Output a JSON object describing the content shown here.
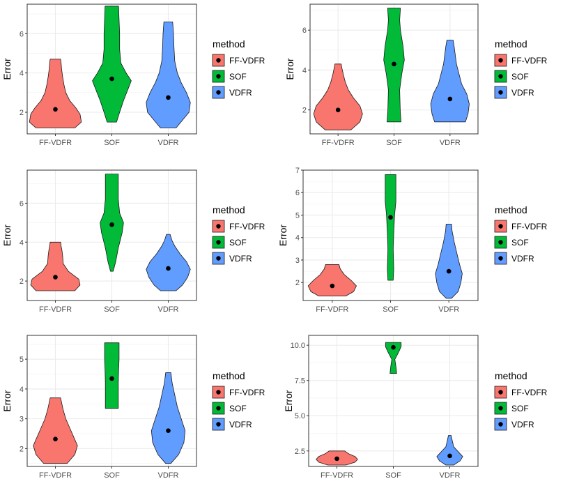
{
  "colors": {
    "FF-VDFR": "#f8766d",
    "SOF": "#00ba38",
    "VDFR": "#619cff"
  },
  "chart_data": [
    {
      "type": "violin",
      "ylabel": "Error",
      "categories": [
        "FF-VDFR",
        "SOF",
        "VDFR"
      ],
      "ylim": [
        0.9,
        7.5
      ],
      "yticks": [
        2,
        4,
        6
      ],
      "legend": {
        "title": "method",
        "entries": [
          "FF-VDFR",
          "SOF",
          "VDFR"
        ],
        "position": "right"
      },
      "series": [
        {
          "name": "FF-VDFR",
          "min": 1.2,
          "max": 4.7,
          "mean": 2.15,
          "profile": [
            [
              1.2,
              0.75
            ],
            [
              1.5,
              1.0
            ],
            [
              1.9,
              0.95
            ],
            [
              2.2,
              0.8
            ],
            [
              2.6,
              0.55
            ],
            [
              3.0,
              0.4
            ],
            [
              3.4,
              0.33
            ],
            [
              3.8,
              0.28
            ],
            [
              4.2,
              0.24
            ],
            [
              4.5,
              0.22
            ],
            [
              4.7,
              0.2
            ]
          ]
        },
        {
          "name": "SOF",
          "min": 1.5,
          "max": 7.4,
          "mean": 3.7,
          "profile": [
            [
              1.5,
              0.18
            ],
            [
              2.0,
              0.3
            ],
            [
              2.6,
              0.45
            ],
            [
              3.1,
              0.6
            ],
            [
              3.6,
              0.75
            ],
            [
              4.0,
              0.55
            ],
            [
              4.5,
              0.35
            ],
            [
              5.2,
              0.3
            ],
            [
              6.0,
              0.3
            ],
            [
              6.7,
              0.28
            ],
            [
              7.4,
              0.26
            ]
          ]
        },
        {
          "name": "VDFR",
          "min": 1.2,
          "max": 6.6,
          "mean": 2.75,
          "profile": [
            [
              1.2,
              0.3
            ],
            [
              1.6,
              0.55
            ],
            [
              2.0,
              0.8
            ],
            [
              2.5,
              0.85
            ],
            [
              3.0,
              0.7
            ],
            [
              3.5,
              0.5
            ],
            [
              4.0,
              0.35
            ],
            [
              4.6,
              0.25
            ],
            [
              5.3,
              0.22
            ],
            [
              6.0,
              0.2
            ],
            [
              6.6,
              0.17
            ]
          ]
        }
      ]
    },
    {
      "type": "violin",
      "ylabel": "Error",
      "categories": [
        "FF-VDFR",
        "SOF",
        "VDFR"
      ],
      "ylim": [
        0.8,
        7.3
      ],
      "yticks": [
        2,
        4,
        6
      ],
      "legend": {
        "title": "method",
        "entries": [
          "FF-VDFR",
          "SOF",
          "VDFR"
        ],
        "position": "right"
      },
      "series": [
        {
          "name": "FF-VDFR",
          "min": 1.0,
          "max": 4.3,
          "mean": 2.0,
          "profile": [
            [
              1.0,
              0.5
            ],
            [
              1.4,
              0.85
            ],
            [
              1.8,
              0.95
            ],
            [
              2.2,
              0.85
            ],
            [
              2.6,
              0.6
            ],
            [
              3.0,
              0.4
            ],
            [
              3.4,
              0.28
            ],
            [
              3.8,
              0.2
            ],
            [
              4.1,
              0.15
            ],
            [
              4.3,
              0.12
            ]
          ]
        },
        {
          "name": "SOF",
          "min": 1.4,
          "max": 7.1,
          "mean": 4.3,
          "profile": [
            [
              1.4,
              0.27
            ],
            [
              2.0,
              0.24
            ],
            [
              3.0,
              0.22
            ],
            [
              3.8,
              0.3
            ],
            [
              4.5,
              0.4
            ],
            [
              5.2,
              0.35
            ],
            [
              6.0,
              0.25
            ],
            [
              6.5,
              0.22
            ],
            [
              7.1,
              0.25
            ]
          ]
        },
        {
          "name": "VDFR",
          "min": 1.4,
          "max": 5.5,
          "mean": 2.55,
          "profile": [
            [
              1.4,
              0.6
            ],
            [
              1.8,
              0.7
            ],
            [
              2.3,
              0.75
            ],
            [
              2.8,
              0.65
            ],
            [
              3.3,
              0.45
            ],
            [
              3.8,
              0.35
            ],
            [
              4.3,
              0.25
            ],
            [
              4.8,
              0.2
            ],
            [
              5.2,
              0.16
            ],
            [
              5.5,
              0.12
            ]
          ]
        }
      ]
    },
    {
      "type": "violin",
      "ylabel": "Error",
      "categories": [
        "FF-VDFR",
        "SOF",
        "VDFR"
      ],
      "ylim": [
        1.0,
        7.7
      ],
      "yticks": [
        2,
        4,
        6
      ],
      "legend": {
        "title": "method",
        "entries": [
          "FF-VDFR",
          "SOF",
          "VDFR"
        ],
        "position": "right"
      },
      "series": [
        {
          "name": "FF-VDFR",
          "min": 1.5,
          "max": 4.0,
          "mean": 2.2,
          "profile": [
            [
              1.5,
              0.75
            ],
            [
              1.8,
              0.95
            ],
            [
              2.1,
              0.9
            ],
            [
              2.5,
              0.5
            ],
            [
              2.9,
              0.3
            ],
            [
              3.3,
              0.28
            ],
            [
              3.6,
              0.25
            ],
            [
              3.8,
              0.22
            ],
            [
              4.0,
              0.2
            ]
          ]
        },
        {
          "name": "SOF",
          "min": 2.5,
          "max": 7.5,
          "mean": 4.9,
          "profile": [
            [
              2.5,
              0.05
            ],
            [
              3.0,
              0.15
            ],
            [
              3.7,
              0.25
            ],
            [
              4.5,
              0.4
            ],
            [
              5.0,
              0.45
            ],
            [
              5.5,
              0.3
            ],
            [
              6.2,
              0.25
            ],
            [
              6.9,
              0.25
            ],
            [
              7.5,
              0.25
            ]
          ]
        },
        {
          "name": "VDFR",
          "min": 1.5,
          "max": 4.4,
          "mean": 2.65,
          "profile": [
            [
              1.5,
              0.3
            ],
            [
              1.8,
              0.55
            ],
            [
              2.2,
              0.75
            ],
            [
              2.6,
              0.85
            ],
            [
              3.0,
              0.7
            ],
            [
              3.4,
              0.45
            ],
            [
              3.8,
              0.25
            ],
            [
              4.1,
              0.14
            ],
            [
              4.4,
              0.07
            ]
          ]
        }
      ]
    },
    {
      "type": "violin",
      "ylabel": "Error",
      "categories": [
        "FF-VDFR",
        "SOF",
        "VDFR"
      ],
      "ylim": [
        1.2,
        7.0
      ],
      "yticks": [
        2,
        3,
        4,
        5,
        6,
        7
      ],
      "legend": {
        "title": "method",
        "entries": [
          "FF-VDFR",
          "SOF",
          "VDFR"
        ],
        "position": "right"
      },
      "series": [
        {
          "name": "FF-VDFR",
          "min": 1.4,
          "max": 2.8,
          "mean": 1.85,
          "profile": [
            [
              1.4,
              0.5
            ],
            [
              1.6,
              0.8
            ],
            [
              1.85,
              0.9
            ],
            [
              2.1,
              0.7
            ],
            [
              2.35,
              0.45
            ],
            [
              2.6,
              0.3
            ],
            [
              2.8,
              0.25
            ]
          ]
        },
        {
          "name": "SOF",
          "min": 2.1,
          "max": 6.8,
          "mean": 4.9,
          "profile": [
            [
              2.1,
              0.1
            ],
            [
              2.6,
              0.12
            ],
            [
              3.5,
              0.1
            ],
            [
              4.2,
              0.12
            ],
            [
              5.0,
              0.15
            ],
            [
              5.6,
              0.2
            ],
            [
              6.2,
              0.2
            ],
            [
              6.8,
              0.2
            ]
          ]
        },
        {
          "name": "VDFR",
          "min": 1.3,
          "max": 4.6,
          "mean": 2.5,
          "profile": [
            [
              1.3,
              0.1
            ],
            [
              1.6,
              0.35
            ],
            [
              2.0,
              0.45
            ],
            [
              2.4,
              0.5
            ],
            [
              2.8,
              0.4
            ],
            [
              3.3,
              0.3
            ],
            [
              3.8,
              0.2
            ],
            [
              4.3,
              0.12
            ],
            [
              4.6,
              0.1
            ]
          ]
        }
      ]
    },
    {
      "type": "violin",
      "ylabel": "Error",
      "categories": [
        "FF-VDFR",
        "SOF",
        "VDFR"
      ],
      "ylim": [
        1.4,
        5.8
      ],
      "yticks": [
        2,
        3,
        4,
        5
      ],
      "legend": {
        "title": "method",
        "entries": [
          "FF-VDFR",
          "SOF",
          "VDFR"
        ],
        "position": "right"
      },
      "series": [
        {
          "name": "FF-VDFR",
          "min": 1.5,
          "max": 3.7,
          "mean": 2.32,
          "profile": [
            [
              1.5,
              0.45
            ],
            [
              1.8,
              0.75
            ],
            [
              2.1,
              0.85
            ],
            [
              2.4,
              0.7
            ],
            [
              2.7,
              0.55
            ],
            [
              3.0,
              0.4
            ],
            [
              3.3,
              0.3
            ],
            [
              3.5,
              0.25
            ],
            [
              3.7,
              0.2
            ]
          ]
        },
        {
          "name": "SOF",
          "min": 3.35,
          "max": 5.55,
          "mean": 4.35,
          "profile": [
            [
              3.35,
              0.25
            ],
            [
              3.8,
              0.25
            ],
            [
              4.2,
              0.25
            ],
            [
              4.6,
              0.26
            ],
            [
              5.0,
              0.28
            ],
            [
              5.3,
              0.28
            ],
            [
              5.55,
              0.28
            ]
          ]
        },
        {
          "name": "VDFR",
          "min": 1.5,
          "max": 4.55,
          "mean": 2.6,
          "profile": [
            [
              1.5,
              0.1
            ],
            [
              1.8,
              0.4
            ],
            [
              2.2,
              0.6
            ],
            [
              2.6,
              0.65
            ],
            [
              3.0,
              0.5
            ],
            [
              3.4,
              0.35
            ],
            [
              3.8,
              0.25
            ],
            [
              4.2,
              0.15
            ],
            [
              4.55,
              0.1
            ]
          ]
        }
      ]
    },
    {
      "type": "violin",
      "ylabel": "Error",
      "categories": [
        "FF-VDFR",
        "SOF",
        "VDFR"
      ],
      "ylim": [
        1.4,
        10.7
      ],
      "yticks": [
        2.5,
        5.0,
        7.5,
        10.0
      ],
      "ytick_labels": [
        "2.5",
        "5.0",
        "7.5",
        "10.0"
      ],
      "legend": {
        "title": "method",
        "entries": [
          "FF-VDFR",
          "SOF",
          "VDFR"
        ],
        "position": "right"
      },
      "series": [
        {
          "name": "FF-VDFR",
          "min": 1.5,
          "max": 2.5,
          "mean": 1.95,
          "profile": [
            [
              1.5,
              0.35
            ],
            [
              1.7,
              0.7
            ],
            [
              1.9,
              0.8
            ],
            [
              2.1,
              0.7
            ],
            [
              2.3,
              0.45
            ],
            [
              2.5,
              0.3
            ]
          ]
        },
        {
          "name": "SOF",
          "min": 8.0,
          "max": 10.2,
          "mean": 9.85,
          "profile": [
            [
              8.0,
              0.13
            ],
            [
              8.5,
              0.1
            ],
            [
              9.0,
              0.06
            ],
            [
              9.5,
              0.2
            ],
            [
              9.9,
              0.3
            ],
            [
              10.2,
              0.3
            ]
          ]
        },
        {
          "name": "VDFR",
          "min": 1.5,
          "max": 3.6,
          "mean": 2.15,
          "profile": [
            [
              1.5,
              0.15
            ],
            [
              1.8,
              0.4
            ],
            [
              2.1,
              0.5
            ],
            [
              2.4,
              0.35
            ],
            [
              2.8,
              0.15
            ],
            [
              3.2,
              0.1
            ],
            [
              3.6,
              0.05
            ]
          ]
        }
      ]
    }
  ]
}
